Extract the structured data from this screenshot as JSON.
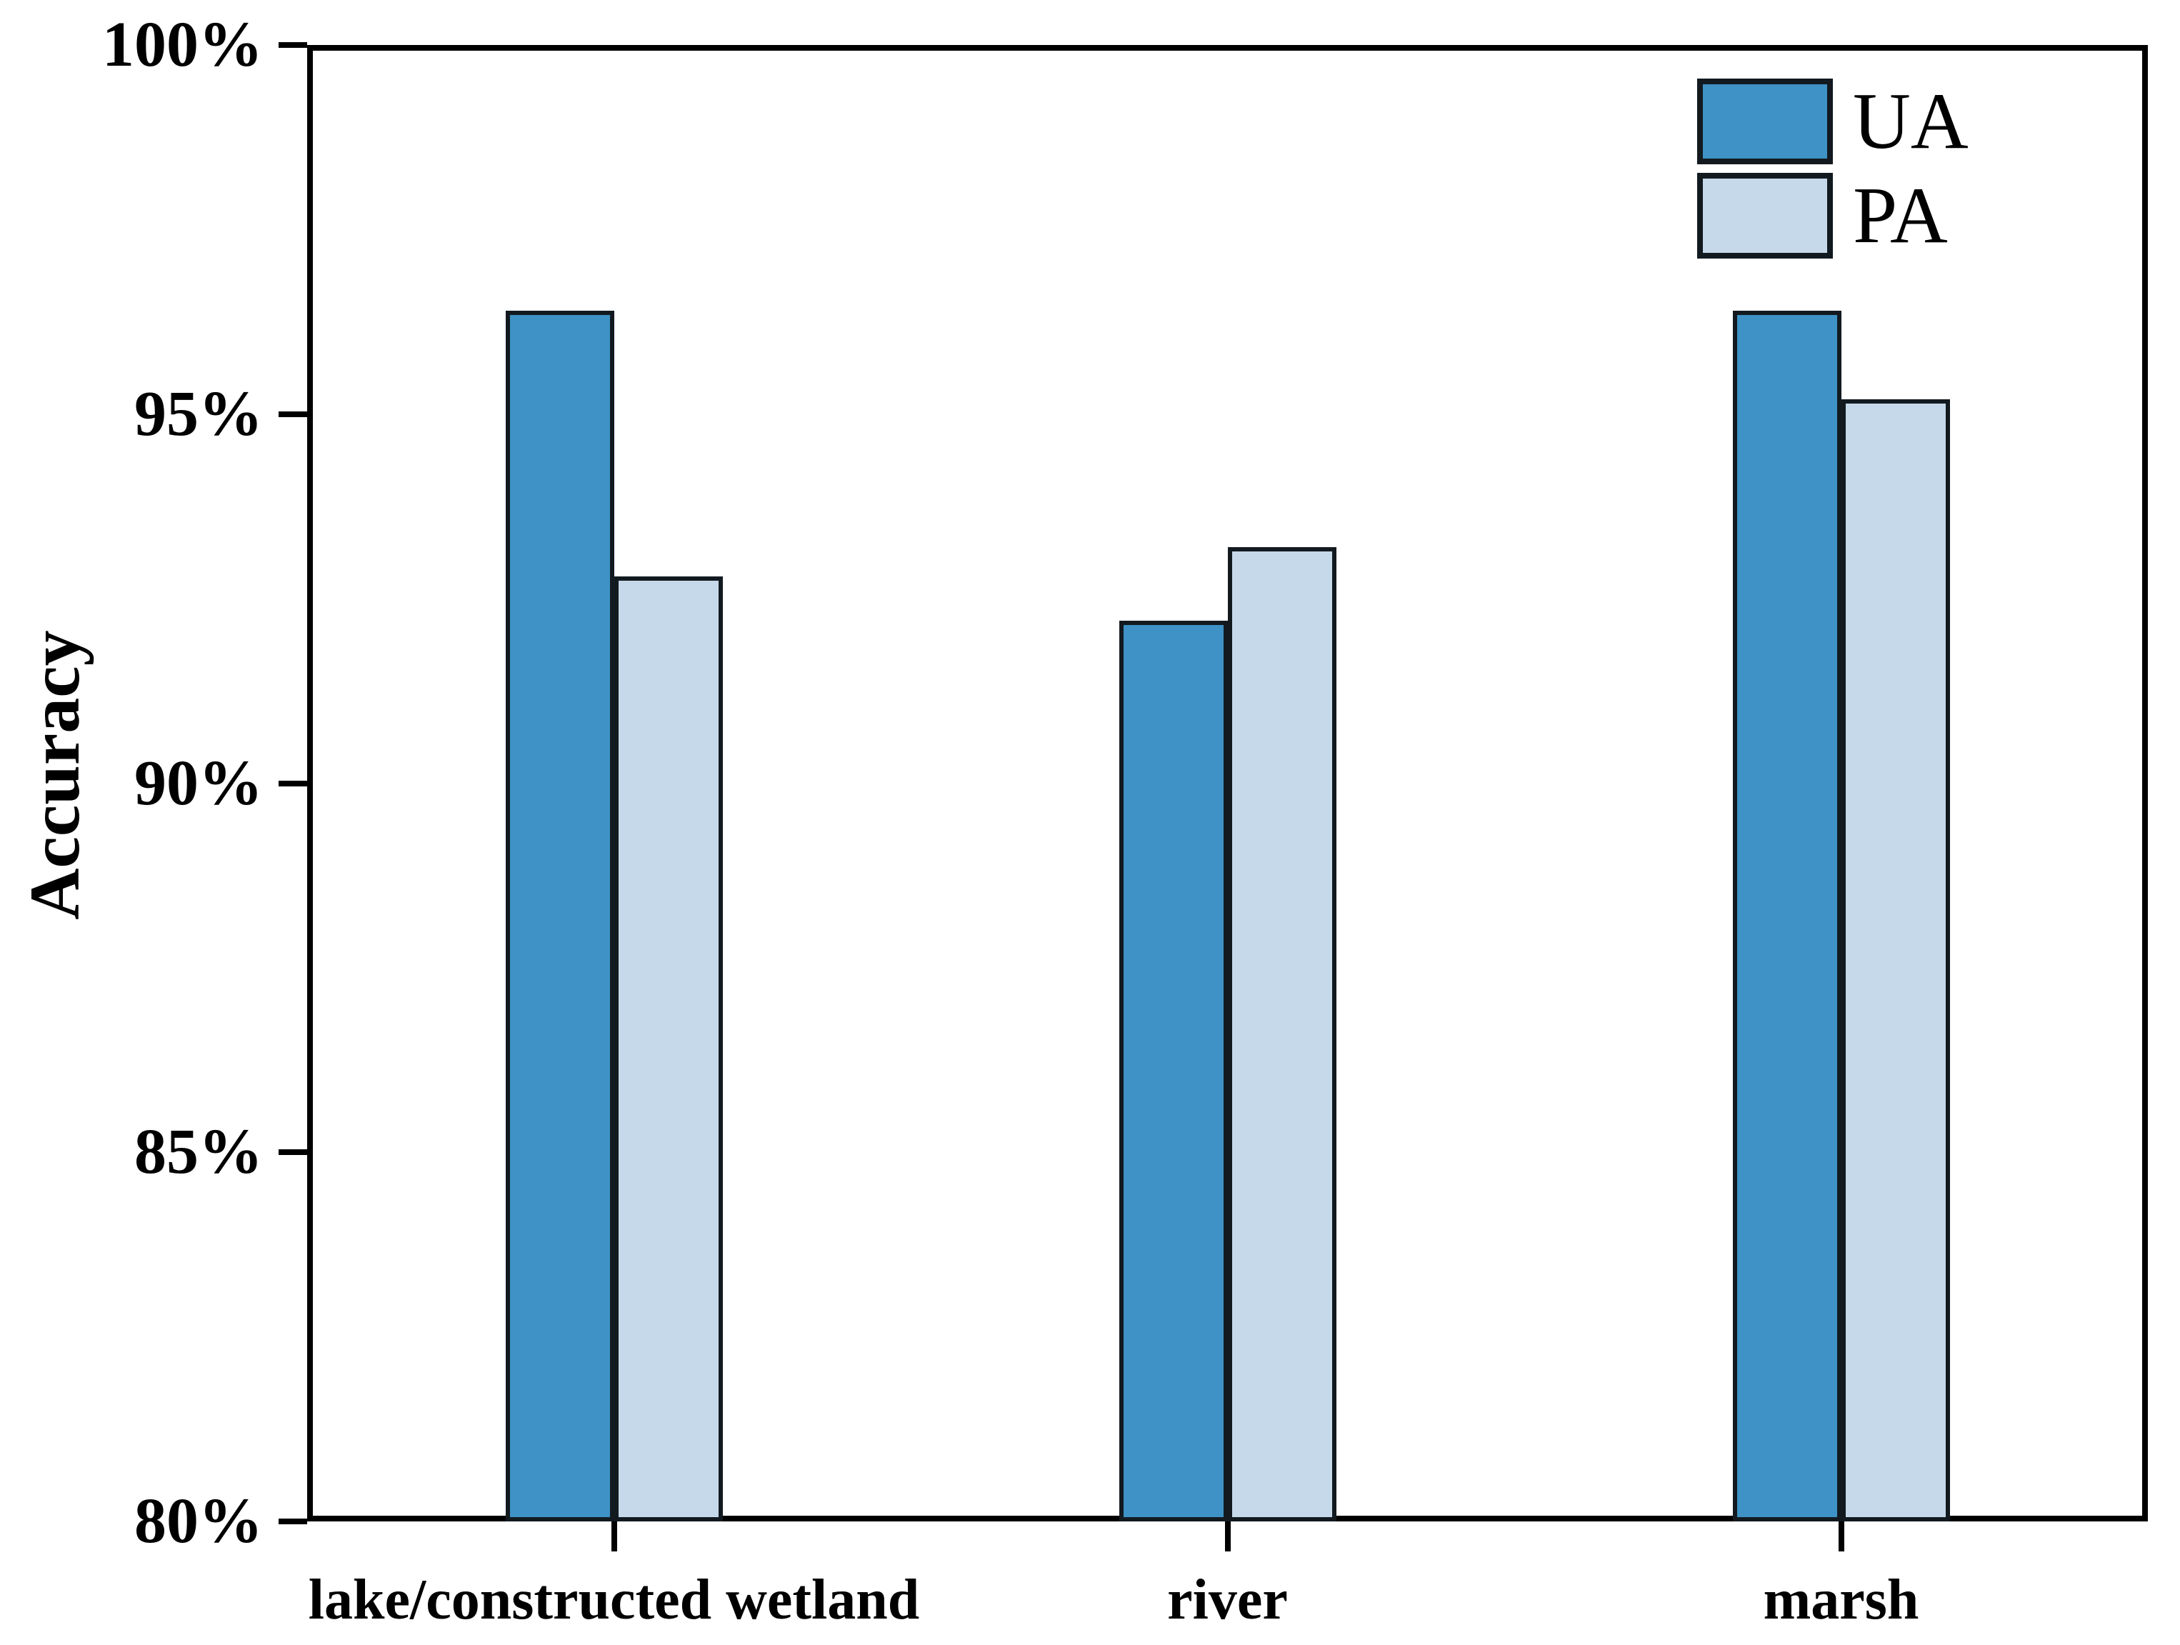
{
  "figure_background": "#ffffff",
  "axis_color": "#000000",
  "bar_edge_color": "#121a20",
  "chart_data": {
    "type": "bar",
    "categories": [
      "lake/constructed wetland",
      "river",
      "marsh"
    ],
    "series": [
      {
        "name": "UA",
        "color": "#3E92C5",
        "values": [
          96.4,
          92.2,
          96.4
        ]
      },
      {
        "name": "PA",
        "color": "#C6D9EA",
        "values": [
          92.8,
          93.2,
          95.2
        ]
      }
    ],
    "title": "",
    "xlabel": "",
    "ylabel": "Accuracy",
    "ylim": [
      80,
      100
    ],
    "yticks": [
      {
        "value": 80,
        "label": "80%"
      },
      {
        "value": 85,
        "label": "85%"
      },
      {
        "value": 90,
        "label": "90%"
      },
      {
        "value": 95,
        "label": "95%"
      },
      {
        "value": 100,
        "label": "100%"
      }
    ],
    "grid": false,
    "legend_position": "top-right",
    "legend": [
      {
        "label": "UA"
      },
      {
        "label": "PA"
      }
    ]
  }
}
